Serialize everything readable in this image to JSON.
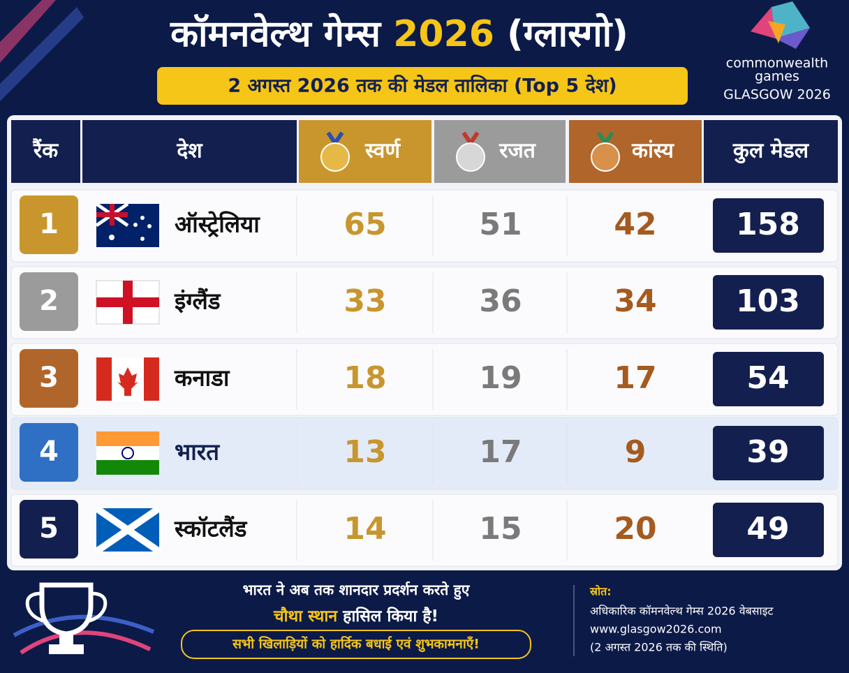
{
  "header": {
    "title": [
      "कॉमनवेल्थ गेम्स",
      "2026",
      "(ग्लास्गो)"
    ],
    "subtitle": "2 अगस्त 2026 तक की मेडल तालिका (Top 5 देश)"
  },
  "logo": {
    "line1": "commonwealth",
    "line2": "games",
    "line3": "GLASGOW 2026"
  },
  "table": {
    "columns": [
      "रैंक",
      "देश",
      "स्वर्ण",
      "रजत",
      "कांस्य",
      "कुल मेडल"
    ],
    "rows": [
      [
        1,
        "ऑस्ट्रेलिया",
        65,
        51,
        42,
        158
      ],
      [
        2,
        "इंग्लैंड",
        33,
        36,
        34,
        103
      ],
      [
        3,
        "कनाडा",
        18,
        19,
        17,
        54
      ],
      [
        4,
        "भारत",
        13,
        17,
        9,
        39
      ],
      [
        5,
        "स्कॉटलैंड",
        14,
        15,
        20,
        49
      ]
    ]
  },
  "footer": {
    "message": [
      "भारत ने अब तक शानदार प्रदर्शन करते हुए",
      "चौथा स्थान",
      "हासिल किया है!"
    ],
    "wish": "सभी खिलाड़ियों को हार्दिक बधाई एवं शुभकामनाएँ!",
    "source_label": "स्रोत:",
    "source_lines": [
      "अधिकारिक कॉमनवेल्थ गेम्स 2026 वेबसाइट",
      "www.glasgow2026.com",
      "(2 अगस्त 2026 तक की स्थिति)"
    ]
  }
}
